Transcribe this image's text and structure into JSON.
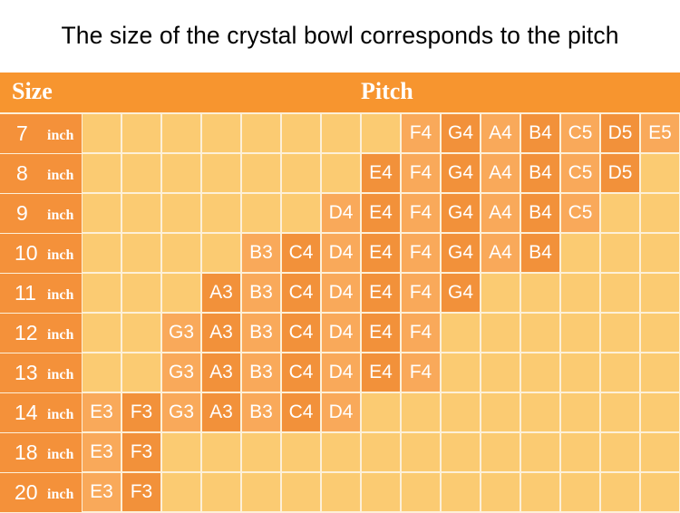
{
  "title": "The size of the crystal bowl corresponds to the pitch",
  "header": {
    "size_label": "Size",
    "pitch_label": "Pitch"
  },
  "colors": {
    "header": "#f7952f",
    "size_column": "#f4913a",
    "note_light": "#f9a95a",
    "note_dark": "#f2913a",
    "empty": "#fbcb72",
    "grid_line": "#fdf0d8"
  },
  "pitch_columns": [
    "E3",
    "F3",
    "G3",
    "A3",
    "B3",
    "C4",
    "D4",
    "E4",
    "F4",
    "G4",
    "A4",
    "B4",
    "C5",
    "D5",
    "E5"
  ],
  "rows": [
    {
      "size": "7",
      "unit": "inch",
      "notes": [
        "F4",
        "G4",
        "A4",
        "B4",
        "C5",
        "D5",
        "E5"
      ]
    },
    {
      "size": "8",
      "unit": "inch",
      "notes": [
        "E4",
        "F4",
        "G4",
        "A4",
        "B4",
        "C5",
        "D5"
      ]
    },
    {
      "size": "9",
      "unit": "inch",
      "notes": [
        "D4",
        "E4",
        "F4",
        "G4",
        "A4",
        "B4",
        "C5"
      ]
    },
    {
      "size": "10",
      "unit": "inch",
      "notes": [
        "B3",
        "C4",
        "D4",
        "E4",
        "F4",
        "G4",
        "A4",
        "B4"
      ]
    },
    {
      "size": "11",
      "unit": "inch",
      "notes": [
        "A3",
        "B3",
        "C4",
        "D4",
        "E4",
        "F4",
        "G4"
      ]
    },
    {
      "size": "12",
      "unit": "inch",
      "notes": [
        "G3",
        "A3",
        "B3",
        "C4",
        "D4",
        "E4",
        "F4"
      ]
    },
    {
      "size": "13",
      "unit": "inch",
      "notes": [
        "G3",
        "A3",
        "B3",
        "C4",
        "D4",
        "E4",
        "F4"
      ]
    },
    {
      "size": "14",
      "unit": "inch",
      "notes": [
        "E3",
        "F3",
        "G3",
        "A3",
        "B3",
        "C4",
        "D4"
      ]
    },
    {
      "size": "18",
      "unit": "inch",
      "notes": [
        "E3",
        "F3"
      ]
    },
    {
      "size": "20",
      "unit": "inch",
      "notes": [
        "E3",
        "F3"
      ]
    }
  ],
  "chart_data": {
    "type": "table",
    "title": "The size of the crystal bowl corresponds to the pitch",
    "columns": [
      "Size",
      "Pitch"
    ],
    "pitch_scale": [
      "E3",
      "F3",
      "G3",
      "A3",
      "B3",
      "C4",
      "D4",
      "E4",
      "F4",
      "G4",
      "A4",
      "B4",
      "C5",
      "D5",
      "E5"
    ],
    "rows": [
      {
        "size": "7 inch",
        "pitches": [
          "F4",
          "G4",
          "A4",
          "B4",
          "C5",
          "D5",
          "E5"
        ]
      },
      {
        "size": "8 inch",
        "pitches": [
          "E4",
          "F4",
          "G4",
          "A4",
          "B4",
          "C5",
          "D5"
        ]
      },
      {
        "size": "9 inch",
        "pitches": [
          "D4",
          "E4",
          "F4",
          "G4",
          "A4",
          "B4",
          "C5"
        ]
      },
      {
        "size": "10 inch",
        "pitches": [
          "B3",
          "C4",
          "D4",
          "E4",
          "F4",
          "G4",
          "A4",
          "B4"
        ]
      },
      {
        "size": "11 inch",
        "pitches": [
          "A3",
          "B3",
          "C4",
          "D4",
          "E4",
          "F4",
          "G4"
        ]
      },
      {
        "size": "12 inch",
        "pitches": [
          "G3",
          "A3",
          "B3",
          "C4",
          "D4",
          "E4",
          "F4"
        ]
      },
      {
        "size": "13 inch",
        "pitches": [
          "G3",
          "A3",
          "B3",
          "C4",
          "D4",
          "E4",
          "F4"
        ]
      },
      {
        "size": "14 inch",
        "pitches": [
          "E3",
          "F3",
          "G3",
          "A3",
          "B3",
          "C4",
          "D4"
        ]
      },
      {
        "size": "18 inch",
        "pitches": [
          "E3",
          "F3"
        ]
      },
      {
        "size": "20 inch",
        "pitches": [
          "E3",
          "F3"
        ]
      }
    ]
  }
}
